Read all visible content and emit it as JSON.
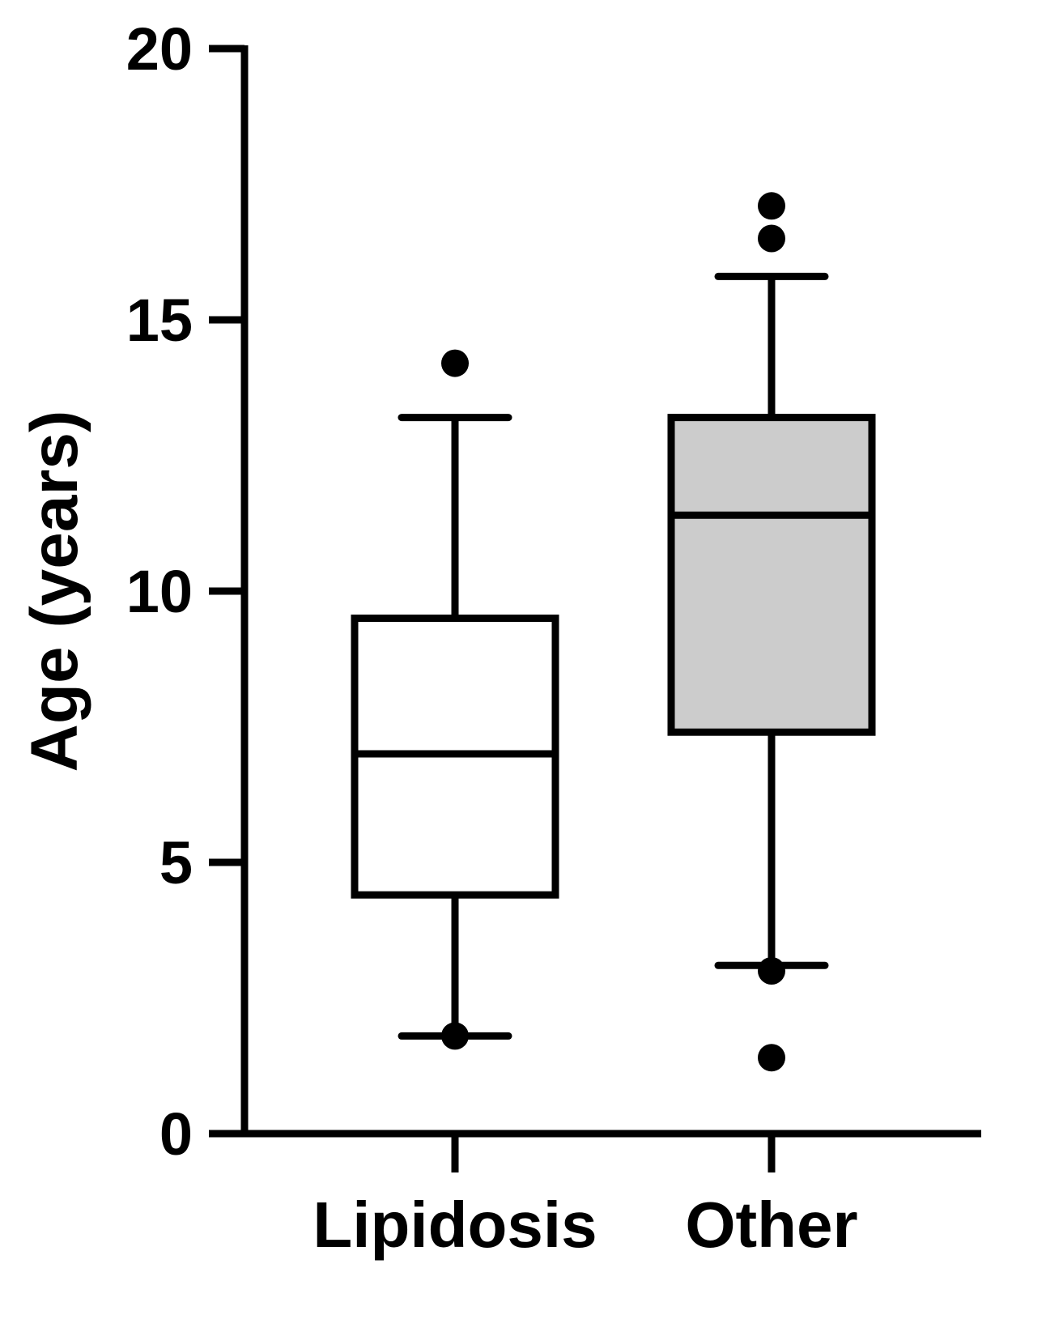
{
  "chart_data": {
    "type": "box",
    "title": "",
    "xlabel": "",
    "ylabel": "Age (years)",
    "ylim": [
      0,
      20
    ],
    "yticks": [
      0,
      5,
      10,
      15,
      20
    ],
    "yticklabels": [
      "0",
      "5",
      "10",
      "15",
      "20"
    ],
    "categories": [
      "Lipidosis",
      "Other"
    ],
    "grid": false,
    "legend": "none",
    "boxes": [
      {
        "category": "Lipidosis",
        "whisker_low": 1.8,
        "q1": 4.4,
        "median": 7.0,
        "q3": 9.5,
        "whisker_high": 13.2,
        "outliers": [
          1.8,
          14.2
        ],
        "fill": "#ffffff"
      },
      {
        "category": "Other",
        "whisker_low": 3.1,
        "q1": 7.4,
        "median": 11.4,
        "q3": 13.2,
        "whisker_high": 15.8,
        "outliers": [
          1.4,
          3.0,
          16.5,
          17.1
        ],
        "fill": "#cccccc"
      }
    ],
    "colors": {
      "stroke": "#000000",
      "other_fill": "#cccccc"
    }
  }
}
